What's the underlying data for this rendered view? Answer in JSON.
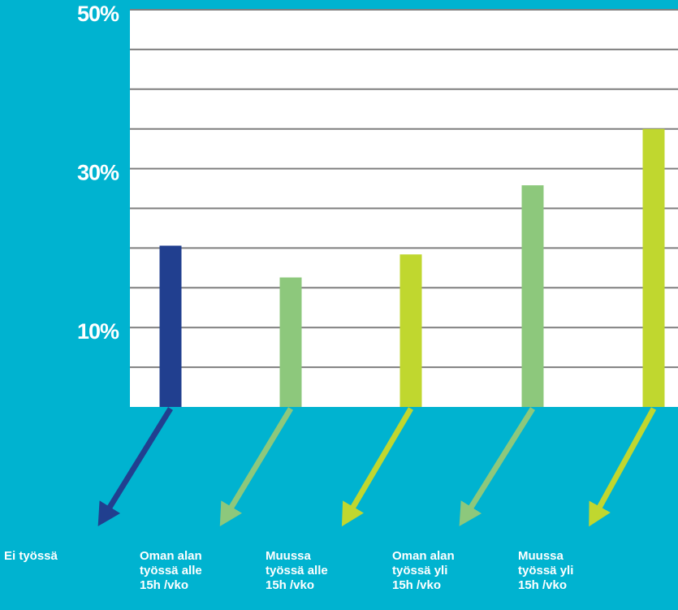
{
  "chart_data": {
    "type": "bar",
    "title": "",
    "xlabel": "",
    "ylabel": "",
    "ylim": [
      0,
      50
    ],
    "ytick_labels": [
      "50%",
      "30%",
      "10%"
    ],
    "ytick_values": [
      50,
      30,
      10
    ],
    "grid_step": 5,
    "grid": true,
    "categories": [
      "Ei työssä",
      "Oman alan\ntyössä alle\n15h /vko",
      "Muussa\ntyössä alle\n15h /vko",
      "Oman alan\ntyössä yli\n15h /vko",
      "Muussa\ntyössä yli\n15h /vko"
    ],
    "values": [
      20.3,
      16.3,
      19.2,
      27.9,
      35.0
    ],
    "colors": [
      "#213f8f",
      "#8dc87c",
      "#c0d72f",
      "#8dc87c",
      "#c0d72f"
    ],
    "plot_background": "#ffffff",
    "page_background": "#00b3d0",
    "grid_color": "#7f7f7f"
  }
}
